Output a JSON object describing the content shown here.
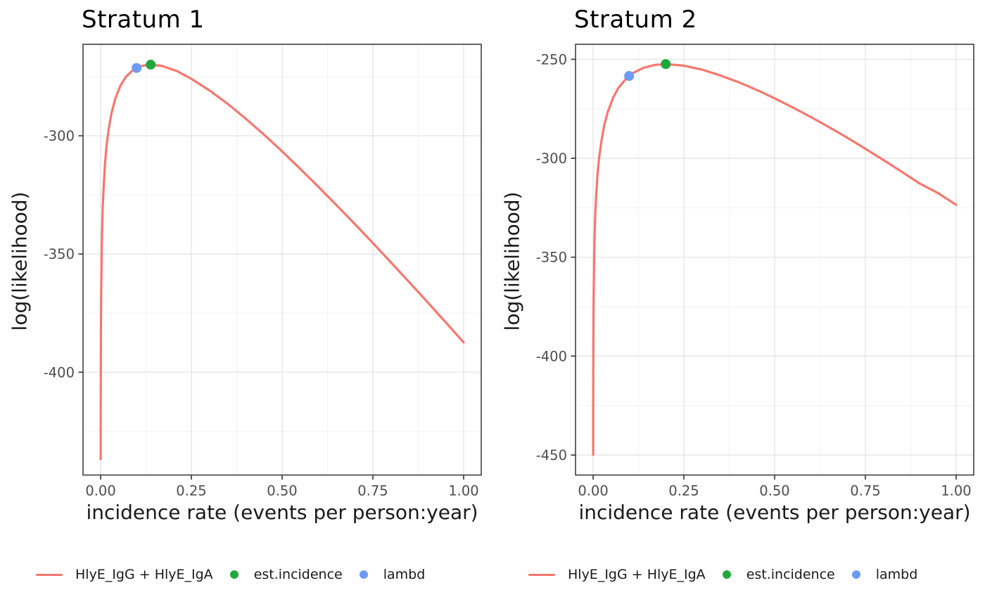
{
  "figure": {
    "background": "#ffffff"
  },
  "colors": {
    "curve": "#F8766D",
    "est_incidence": "#21A83C",
    "lambda": "#6B9BF2",
    "grid_major": "#E4E4E4",
    "grid_minor": "#F2F2F2",
    "panel_border": "#333333",
    "tick_mark": "#333333",
    "tick_label": "#4D4D4D",
    "text": "#1a1a1a"
  },
  "axis_titles": {
    "x": "incidence rate (events per person:year)",
    "y": "log(likelihood)"
  },
  "chart_data": [
    {
      "type": "line",
      "title": "Stratum 1",
      "xlabel": "incidence rate (events per person:year)",
      "ylabel": "log(likelihood)",
      "xlim": [
        -0.0485,
        1.0485
      ],
      "ylim": [
        -443.5,
        -261.3
      ],
      "x_ticks": [
        0,
        0.25,
        0.5,
        0.75,
        1.0
      ],
      "x_tick_labels": [
        "0.00",
        "0.25",
        "0.50",
        "0.75",
        "1.00"
      ],
      "x_minor_ticks": [
        0.125,
        0.375,
        0.625,
        0.875
      ],
      "y_ticks": [
        -300,
        -350,
        -400
      ],
      "y_tick_labels": [
        "-300",
        "-350",
        "-400"
      ],
      "y_minor_ticks": [
        -275,
        -325,
        -375,
        -425
      ],
      "grid": true,
      "legend_position": "bottom",
      "legend": [
        "HlyE_IgG + HlyE_IgA",
        "est.incidence",
        "lambd"
      ],
      "series": [
        {
          "name": "HlyE_IgG + HlyE_IgA",
          "x": [
            0.00012,
            0.0002,
            0.0003,
            0.0005,
            0.0007,
            0.001,
            0.0015,
            0.002,
            0.003,
            0.004,
            0.006,
            0.008,
            0.012,
            0.016,
            0.022,
            0.03,
            0.04,
            0.055,
            0.07,
            0.09,
            0.11,
            0.138,
            0.17,
            0.21,
            0.25,
            0.3,
            0.35,
            0.4,
            0.45,
            0.5,
            0.55,
            0.6,
            0.65,
            0.7,
            0.75,
            0.8,
            0.85,
            0.9,
            0.95,
            1.0
          ],
          "y": [
            -436.8,
            -422.7,
            -411.5,
            -397.4,
            -388.2,
            -378.4,
            -367.3,
            -359.5,
            -348.4,
            -340.2,
            -329.2,
            -322.5,
            -312.1,
            -304.4,
            -297.3,
            -290.4,
            -284.4,
            -278.6,
            -275.0,
            -272.0,
            -270.5,
            -269.9,
            -270.5,
            -272.6,
            -275.9,
            -280.8,
            -286.5,
            -292.8,
            -299.5,
            -306.6,
            -314.0,
            -321.6,
            -329.4,
            -337.3,
            -345.4,
            -353.6,
            -361.9,
            -370.3,
            -378.8,
            -387.4
          ]
        }
      ],
      "points": [
        {
          "name": "est.incidence",
          "x": 0.138,
          "y": -269.9,
          "color_key": "est_incidence"
        },
        {
          "name": "lambda",
          "x": 0.099,
          "y": -271.3,
          "color_key": "lambda"
        }
      ]
    },
    {
      "type": "line",
      "title": "Stratum 2",
      "xlabel": "incidence rate (events per person:year)",
      "ylabel": "log(likelihood)",
      "xlim": [
        -0.0485,
        1.0485
      ],
      "ylim": [
        -460.1,
        -242.4
      ],
      "x_ticks": [
        0,
        0.25,
        0.5,
        0.75,
        1.0
      ],
      "x_tick_labels": [
        "0.00",
        "0.25",
        "0.50",
        "0.75",
        "1.00"
      ],
      "x_minor_ticks": [
        0.125,
        0.375,
        0.625,
        0.875
      ],
      "y_ticks": [
        -250,
        -300,
        -350,
        -400,
        -450
      ],
      "y_tick_labels": [
        "-250",
        "-300",
        "-350",
        "-400",
        "-450"
      ],
      "y_minor_ticks": [
        -275,
        -325,
        -375,
        -425
      ],
      "grid": true,
      "legend_position": "bottom",
      "legend": [
        "HlyE_IgG + HlyE_IgA",
        "est.incidence",
        "lambd"
      ],
      "series": [
        {
          "name": "HlyE_IgG + HlyE_IgA",
          "x": [
            0.0001,
            0.0002,
            0.0003,
            0.0005,
            0.0007,
            0.001,
            0.0015,
            0.002,
            0.003,
            0.004,
            0.006,
            0.008,
            0.012,
            0.016,
            0.022,
            0.03,
            0.04,
            0.055,
            0.07,
            0.09,
            0.11,
            0.138,
            0.17,
            0.2,
            0.25,
            0.3,
            0.35,
            0.4,
            0.45,
            0.5,
            0.55,
            0.6,
            0.65,
            0.7,
            0.75,
            0.8,
            0.85,
            0.9,
            0.95,
            1.0
          ],
          "y": [
            -449.8,
            -429.1,
            -417.0,
            -401.7,
            -391.7,
            -381.1,
            -369.0,
            -360.6,
            -348.5,
            -339.7,
            -327.7,
            -319.9,
            -308.5,
            -300.5,
            -292.3,
            -283.8,
            -276.7,
            -269.4,
            -264.4,
            -259.9,
            -256.9,
            -254.3,
            -252.8,
            -252.4,
            -253.2,
            -255.2,
            -258.1,
            -261.5,
            -265.4,
            -269.7,
            -274.3,
            -279.2,
            -284.3,
            -289.6,
            -295.2,
            -300.9,
            -306.8,
            -312.8,
            -317.6,
            -323.5
          ]
        }
      ],
      "points": [
        {
          "name": "est.incidence",
          "x": 0.2,
          "y": -252.4,
          "color_key": "est_incidence"
        },
        {
          "name": "lambda",
          "x": 0.099,
          "y": -258.4,
          "color_key": "lambda"
        }
      ]
    }
  ]
}
